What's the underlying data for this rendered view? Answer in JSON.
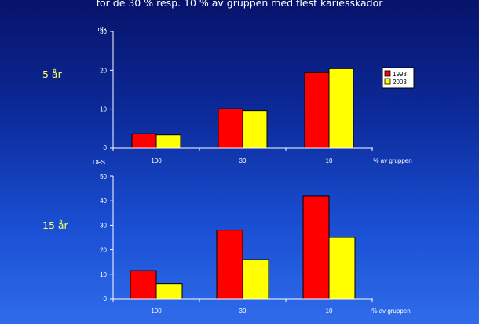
{
  "title": "för de 30 % resp. 10 % av gruppen med flest kariesskador",
  "colors": {
    "series_1993": "#ff0000",
    "series_2003": "#ffff00",
    "axis": "#ffffff"
  },
  "panels": [
    {
      "age_label": "5 år"
    },
    {
      "age_label": "15 år"
    }
  ],
  "chart_data": [
    {
      "type": "bar",
      "ylabel": "dfs",
      "xlabel": "% av gruppen",
      "categories": [
        "100",
        "30",
        "10"
      ],
      "ylim": [
        0,
        30
      ],
      "yticks": [
        "0",
        "10",
        "20",
        "30"
      ],
      "series": [
        {
          "name": "1993",
          "values": [
            3.6,
            10.1,
            19.4
          ]
        },
        {
          "name": "2003",
          "values": [
            3.3,
            9.6,
            20.4
          ]
        }
      ],
      "legend": "right",
      "grid": false
    },
    {
      "type": "bar",
      "ylabel": "DFS",
      "xlabel": "% av gruppen",
      "categories": [
        "100",
        "30",
        "10"
      ],
      "ylim": [
        0,
        50
      ],
      "yticks": [
        "0",
        "10",
        "20",
        "30",
        "40",
        "50"
      ],
      "series": [
        {
          "name": "1993",
          "values": [
            11.5,
            28,
            42
          ]
        },
        {
          "name": "2003",
          "values": [
            6.2,
            16,
            25
          ]
        }
      ],
      "grid": false
    }
  ]
}
